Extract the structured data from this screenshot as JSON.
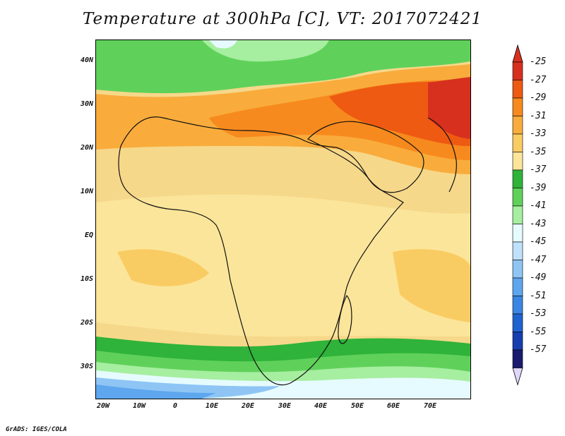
{
  "title": "Temperature at 300hPa [C], VT: 2017072421",
  "footer": "GrADS: IGES/COLA",
  "lat_labels": [
    "40N",
    "30N",
    "20N",
    "10N",
    "EQ",
    "10S",
    "20S",
    "30S"
  ],
  "lon_labels": [
    "20W",
    "10W",
    "0",
    "10E",
    "20E",
    "30E",
    "40E",
    "50E",
    "60E",
    "70E"
  ],
  "colorbar": {
    "labels": [
      "-25",
      "-27",
      "-29",
      "-31",
      "-33",
      "-35",
      "-37",
      "-39",
      "-41",
      "-43",
      "-45",
      "-47",
      "-49",
      "-51",
      "-53",
      "-55",
      "-57"
    ],
    "colors": [
      "#d7301f",
      "#ee5a12",
      "#f78a1e",
      "#f9ac3c",
      "#f9cc63",
      "#fbe59a",
      "#2fb33a",
      "#5fd15a",
      "#a6eea0",
      "#e6fbff",
      "#bfe1fb",
      "#8ec5f5",
      "#5ea6ee",
      "#3b86e2",
      "#1f63cf",
      "#173eaf",
      "#1a1a6e"
    ],
    "top_arrow_color": "#d7301f",
    "bottom_arrow_color": "#e0d7fb"
  }
}
